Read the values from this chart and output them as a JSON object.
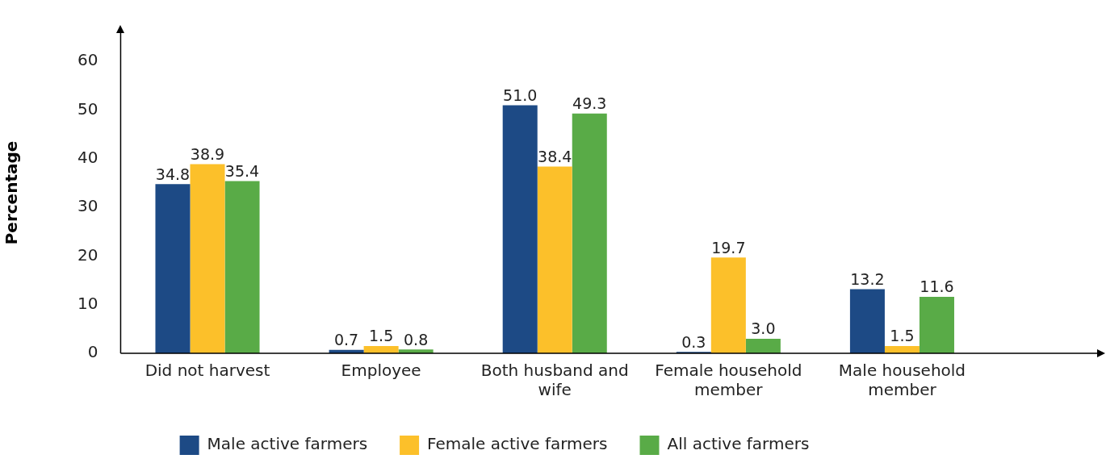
{
  "chart_data": {
    "type": "bar",
    "ylabel": "Percentage",
    "categories": [
      "Did not harvest",
      "Employee",
      "Both husband and wife",
      "Female household member",
      "Male household member"
    ],
    "series": [
      {
        "name": "Male active farmers",
        "color": "#1d4a85",
        "values": [
          34.8,
          0.7,
          51.0,
          0.3,
          13.2
        ],
        "value_labels": [
          "34.8",
          "0.7",
          "51.0",
          "0.3",
          "13.2"
        ]
      },
      {
        "name": "Female active farmers",
        "color": "#fcc02a",
        "values": [
          38.9,
          1.5,
          38.4,
          19.7,
          1.5
        ],
        "value_labels": [
          "38.9",
          "1.5",
          "38.4",
          "19.7",
          "1.5"
        ]
      },
      {
        "name": "All active farmers",
        "color": "#59ab47",
        "values": [
          35.4,
          0.8,
          49.3,
          3.0,
          11.6
        ],
        "value_labels": [
          "35.4",
          "0.8",
          "49.3",
          "3.0",
          "11.6"
        ]
      }
    ],
    "ylim": [
      0,
      66
    ],
    "yticks": [
      0,
      10,
      20,
      30,
      40,
      50,
      60
    ],
    "grid": false,
    "legend": "bottom"
  }
}
